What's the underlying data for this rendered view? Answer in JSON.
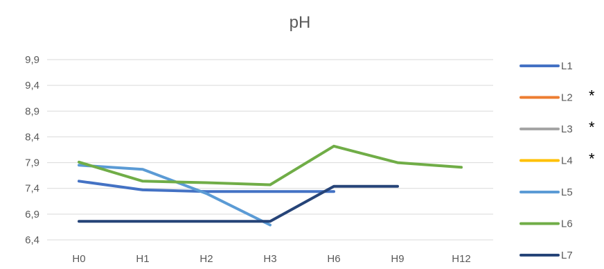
{
  "chart_data": {
    "type": "line",
    "title": "pH",
    "xlabel": "",
    "ylabel": "",
    "categories": [
      "H0",
      "H1",
      "H2",
      "H3",
      "H6",
      "H9",
      "H12"
    ],
    "yticks": [
      "6,4",
      "6,9",
      "7,4",
      "7,9",
      "8,4",
      "8,9",
      "9,4",
      "9,9"
    ],
    "ylim": [
      6.4,
      9.9
    ],
    "grid": true,
    "legend_position": "right",
    "series": [
      {
        "name": "L1",
        "color": "#4472C4",
        "values": [
          7.54,
          7.37,
          7.34,
          7.34,
          7.34,
          null,
          null
        ],
        "marker": ""
      },
      {
        "name": "L2",
        "color": "#ED7D31",
        "values": [
          null,
          null,
          null,
          null,
          null,
          null,
          null
        ],
        "marker": "*"
      },
      {
        "name": "L3",
        "color": "#A5A5A5",
        "values": [
          null,
          null,
          null,
          null,
          null,
          null,
          null
        ],
        "marker": "*"
      },
      {
        "name": "L4",
        "color": "#FFC000",
        "values": [
          null,
          null,
          null,
          null,
          null,
          null,
          null
        ],
        "marker": "*"
      },
      {
        "name": "L5",
        "color": "#5B9BD5",
        "values": [
          7.85,
          7.77,
          7.3,
          6.69,
          null,
          null,
          null
        ],
        "marker": ""
      },
      {
        "name": "L6",
        "color": "#70AD47",
        "values": [
          7.91,
          7.54,
          7.51,
          7.47,
          8.22,
          7.9,
          7.81
        ],
        "marker": ""
      },
      {
        "name": "L7",
        "color": "#264478",
        "values": [
          6.76,
          6.76,
          6.76,
          6.76,
          7.44,
          7.44,
          null
        ],
        "marker": ""
      }
    ]
  }
}
